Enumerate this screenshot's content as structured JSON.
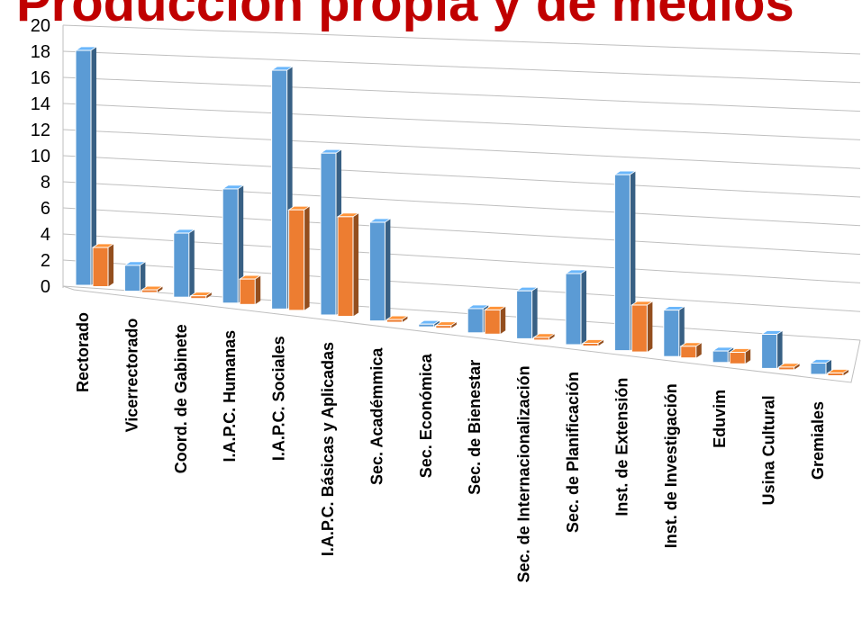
{
  "title": "Producción propia y de medios",
  "chart_data": {
    "type": "bar",
    "categories": [
      "Rectorado",
      "Vicerrectorado",
      "Coord. de Gabinete",
      "I.A.P.C. Humanas",
      "I.A.P.C. Sociales",
      "I.A.P.C. Básicas y Aplicadas",
      "Sec. Académmica",
      "Sec. Económica",
      "Sec. de Bienestar",
      "Sec. de Internacionalización",
      "Sec. de Planificación",
      "Inst. de Extensión",
      "Inst. de Investigación",
      "Eduvim",
      "Usina Cultural",
      "Gremiales"
    ],
    "series": [
      {
        "values": [
          18,
          2,
          5,
          9,
          19,
          13,
          8,
          0,
          2,
          4,
          6,
          15,
          4,
          1,
          3,
          1
        ],
        "color": "#5b9bd5"
      },
      {
        "values": [
          3,
          0,
          0,
          2,
          8,
          8,
          0,
          0,
          2,
          0,
          0,
          4,
          1,
          1,
          0,
          0
        ],
        "color": "#ed7d31"
      }
    ],
    "ylim": [
      0,
      20
    ],
    "yticks": [
      "0",
      "2",
      "4",
      "6",
      "8",
      "10",
      "12",
      "14",
      "16",
      "18",
      "20"
    ],
    "grid": true,
    "style": "3d-column"
  }
}
